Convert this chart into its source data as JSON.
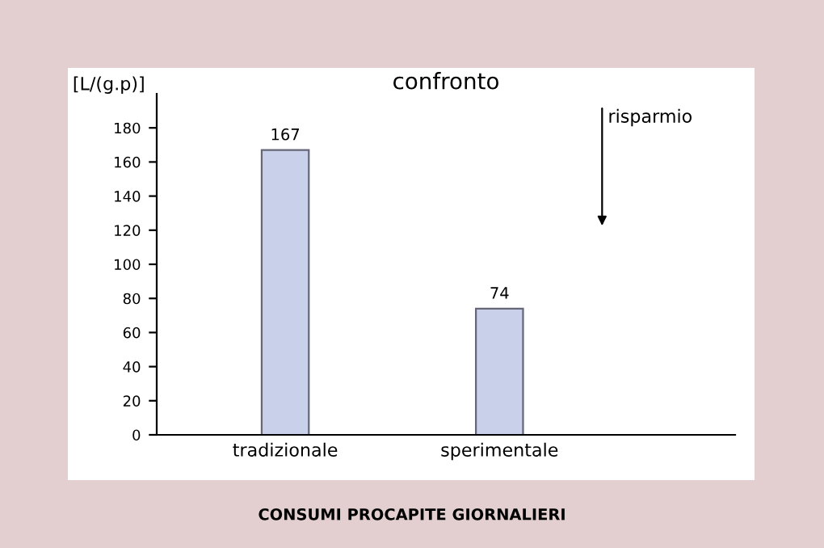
{
  "chart_data": {
    "type": "bar",
    "title": "confronto",
    "ylabel": "[L/(g.p)]",
    "categories": [
      "tradizionale",
      "sperimentale"
    ],
    "values": [
      167,
      74
    ],
    "color": "#c8d0ea",
    "data_labels": true,
    "ylim": [
      0,
      200
    ],
    "yticks": [
      0,
      20,
      40,
      60,
      80,
      100,
      120,
      140,
      160,
      180
    ],
    "grid": false,
    "legend": false,
    "annotations": [
      "risparmio",
      "CONSUMI PROCAPITE GIORNALIERI"
    ]
  }
}
